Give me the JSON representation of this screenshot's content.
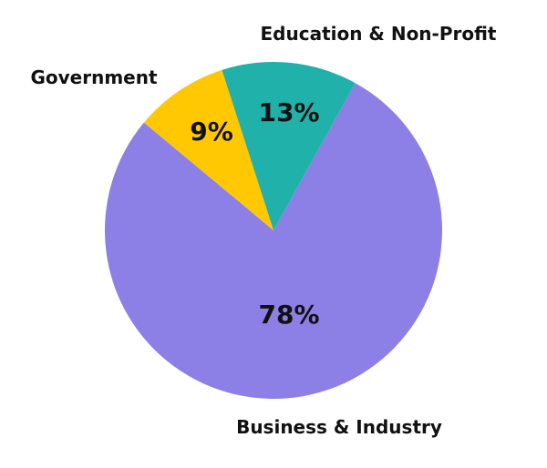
{
  "chart_data": {
    "type": "pie",
    "title": "",
    "slices": [
      {
        "label": "Business & Industry",
        "value": 78,
        "display": "78%",
        "color": "#8c7fe6"
      },
      {
        "label": "Government",
        "value": 9,
        "display": "9%",
        "color": "#ffc800"
      },
      {
        "label": "Education & Non-Profit",
        "value": 13,
        "display": "13%",
        "color": "#20b2aa"
      }
    ],
    "legend": "none",
    "labels": "outside"
  }
}
